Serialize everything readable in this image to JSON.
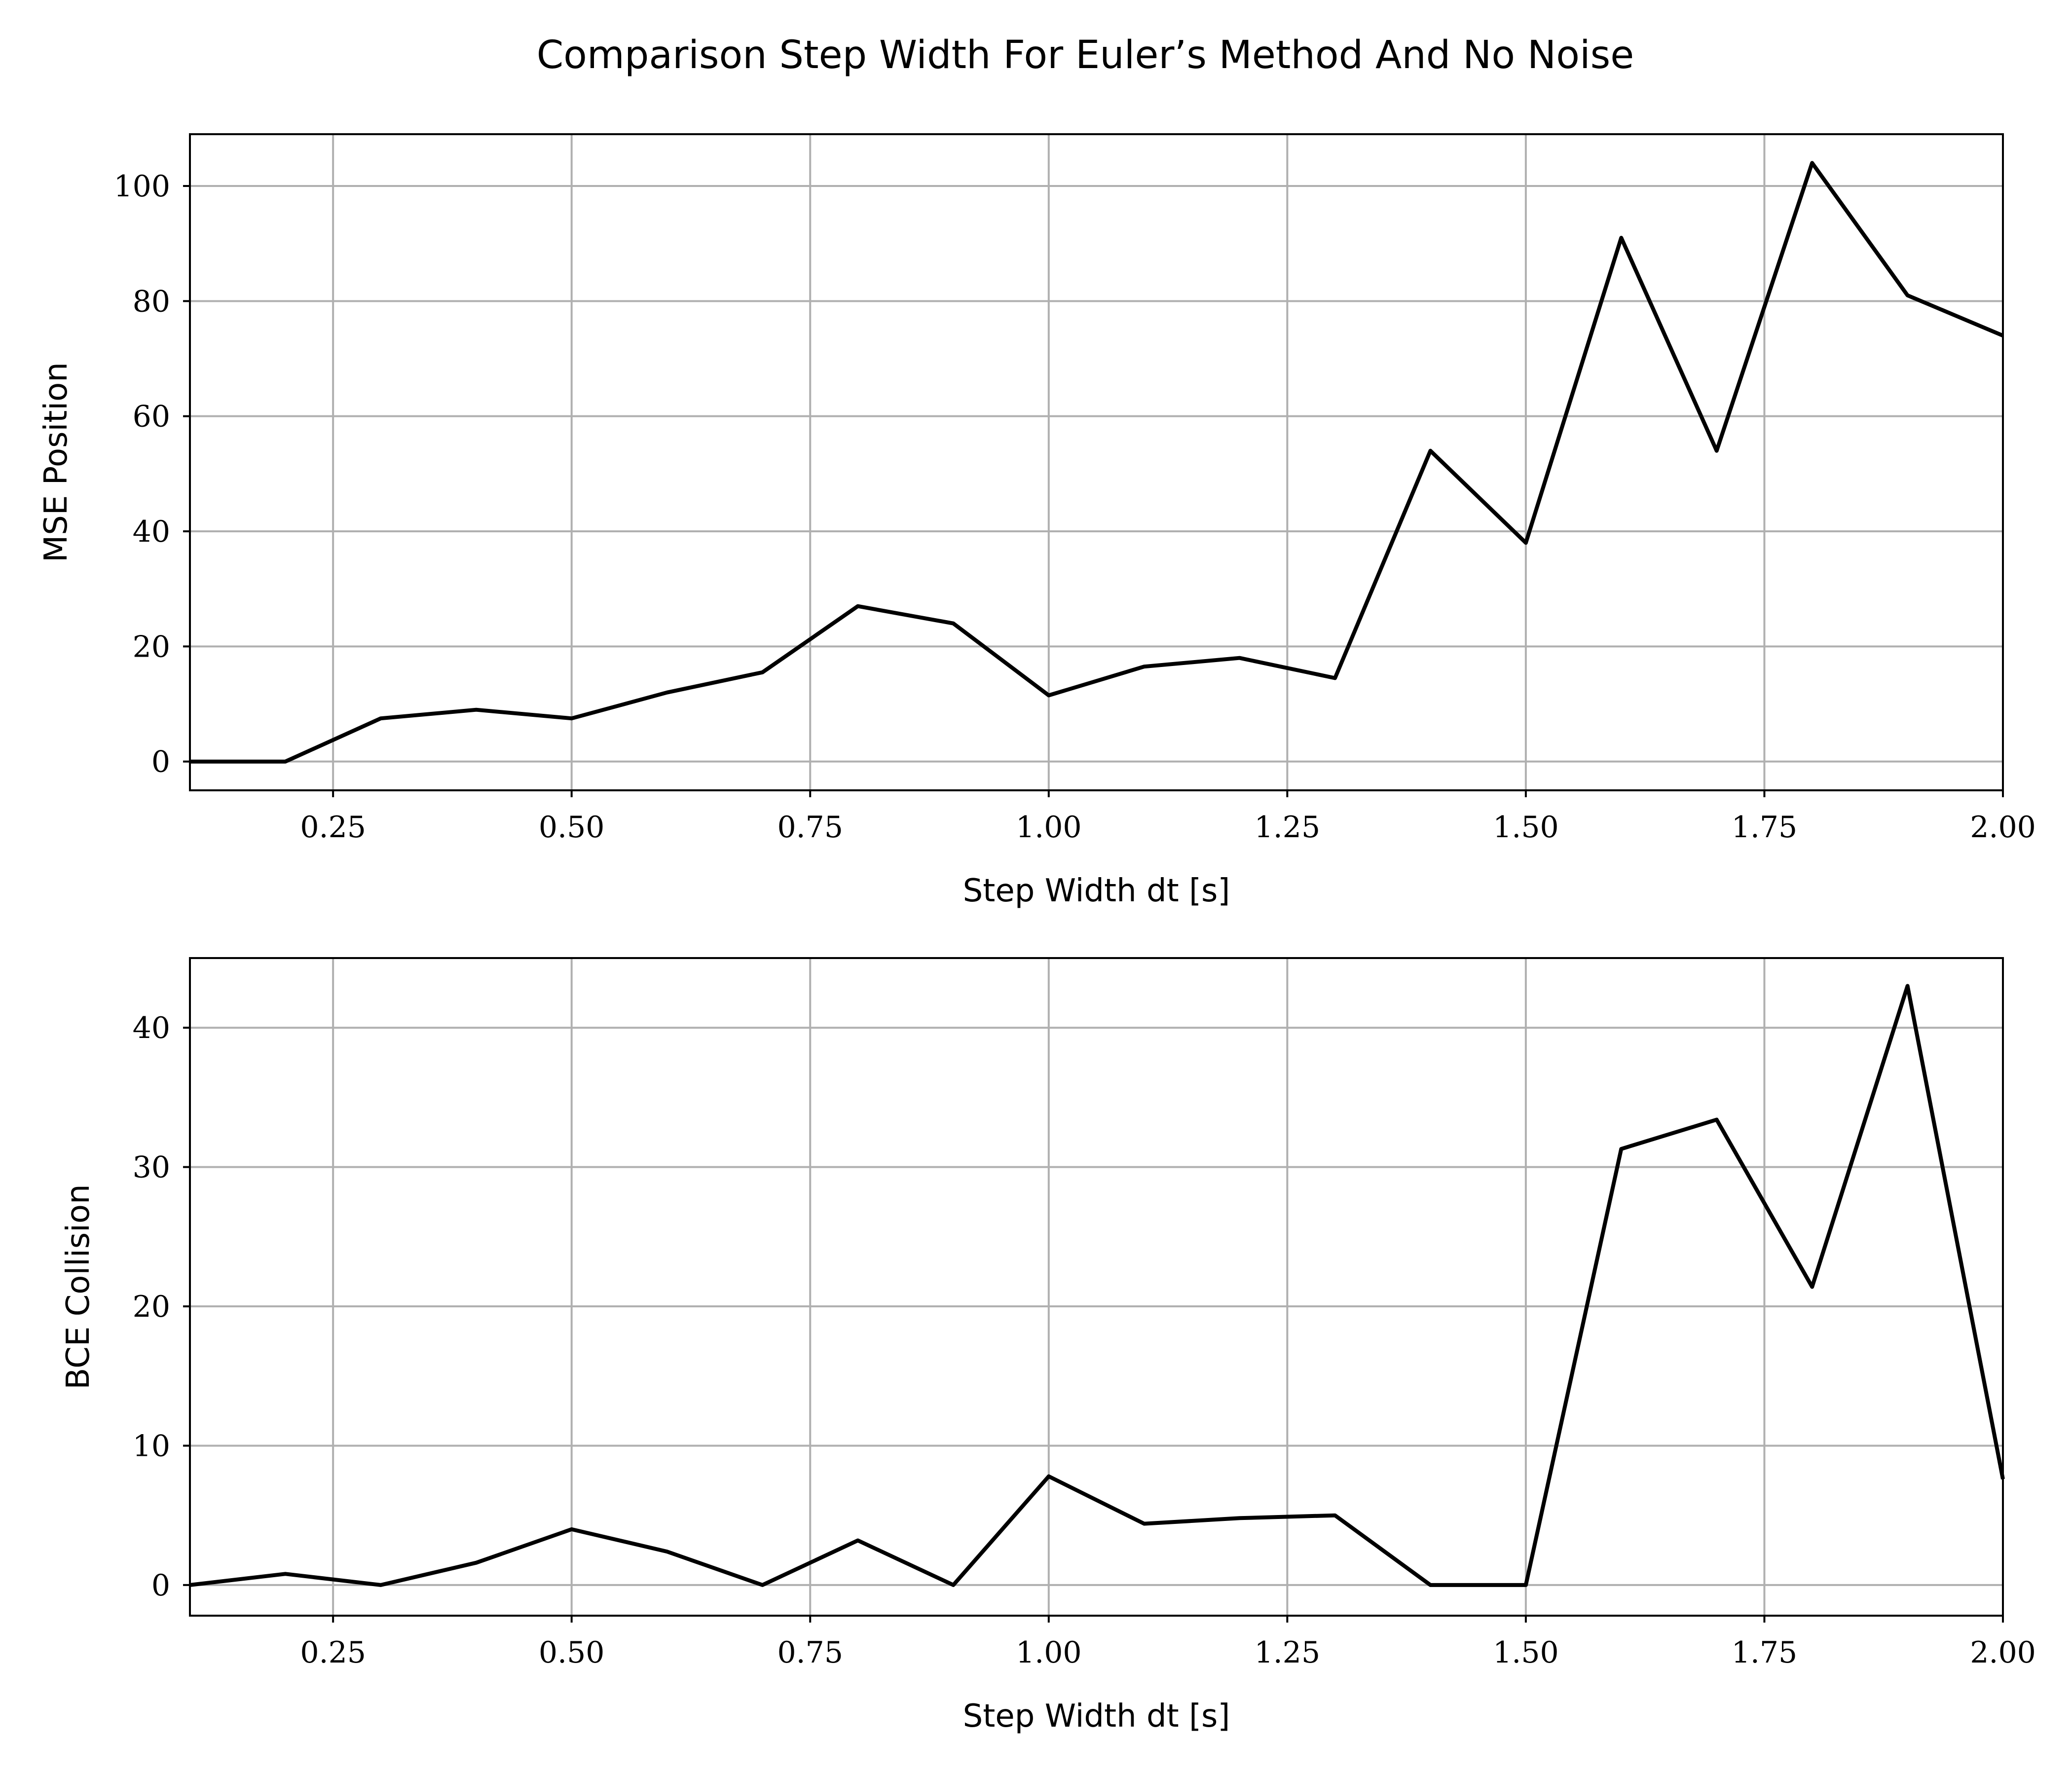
{
  "figure_title": "Comparison Step Width For Euler’s Method And No Noise",
  "chart_data": [
    {
      "type": "line",
      "title": "",
      "xlabel": "Step Width dt [s]",
      "ylabel": "MSE Position",
      "xlim": [
        0.1,
        2.0
      ],
      "ylim": [
        -5,
        109
      ],
      "xticks": [
        0.25,
        0.5,
        0.75,
        1.0,
        1.25,
        1.5,
        1.75,
        2.0
      ],
      "xtick_labels": [
        "0.25",
        "0.50",
        "0.75",
        "1.00",
        "1.25",
        "1.50",
        "1.75",
        "2.00"
      ],
      "yticks": [
        0,
        20,
        40,
        60,
        80,
        100
      ],
      "ytick_labels": [
        "0",
        "20",
        "40",
        "60",
        "80",
        "100"
      ],
      "grid": true,
      "line_color": "#000000",
      "x": [
        0.1,
        0.2,
        0.3,
        0.4,
        0.5,
        0.6,
        0.7,
        0.8,
        0.9,
        1.0,
        1.1,
        1.2,
        1.3,
        1.4,
        1.5,
        1.6,
        1.7,
        1.8,
        1.9,
        2.0
      ],
      "y": [
        0,
        0,
        7.5,
        9,
        7.5,
        12,
        15.5,
        27,
        24,
        11.5,
        16.5,
        18,
        14.5,
        54,
        38,
        91,
        54,
        104,
        81,
        74
      ]
    },
    {
      "type": "line",
      "title": "",
      "xlabel": "Step Width dt [s]",
      "ylabel": "BCE Collision",
      "xlim": [
        0.1,
        2.0
      ],
      "ylim": [
        -2.2,
        45
      ],
      "xticks": [
        0.25,
        0.5,
        0.75,
        1.0,
        1.25,
        1.5,
        1.75,
        2.0
      ],
      "xtick_labels": [
        "0.25",
        "0.50",
        "0.75",
        "1.00",
        "1.25",
        "1.50",
        "1.75",
        "2.00"
      ],
      "yticks": [
        0,
        10,
        20,
        30,
        40
      ],
      "ytick_labels": [
        "0",
        "10",
        "20",
        "30",
        "40"
      ],
      "grid": true,
      "line_color": "#000000",
      "x": [
        0.1,
        0.2,
        0.3,
        0.4,
        0.5,
        0.6,
        0.7,
        0.8,
        0.9,
        1.0,
        1.1,
        1.2,
        1.3,
        1.4,
        1.5,
        1.6,
        1.7,
        1.8,
        1.9,
        2.0
      ],
      "y": [
        0,
        0.8,
        0,
        1.6,
        4,
        2.4,
        0,
        3.2,
        0,
        7.8,
        4.4,
        4.8,
        5.0,
        0,
        0,
        31.3,
        33.4,
        21.4,
        43,
        7.6
      ]
    }
  ]
}
